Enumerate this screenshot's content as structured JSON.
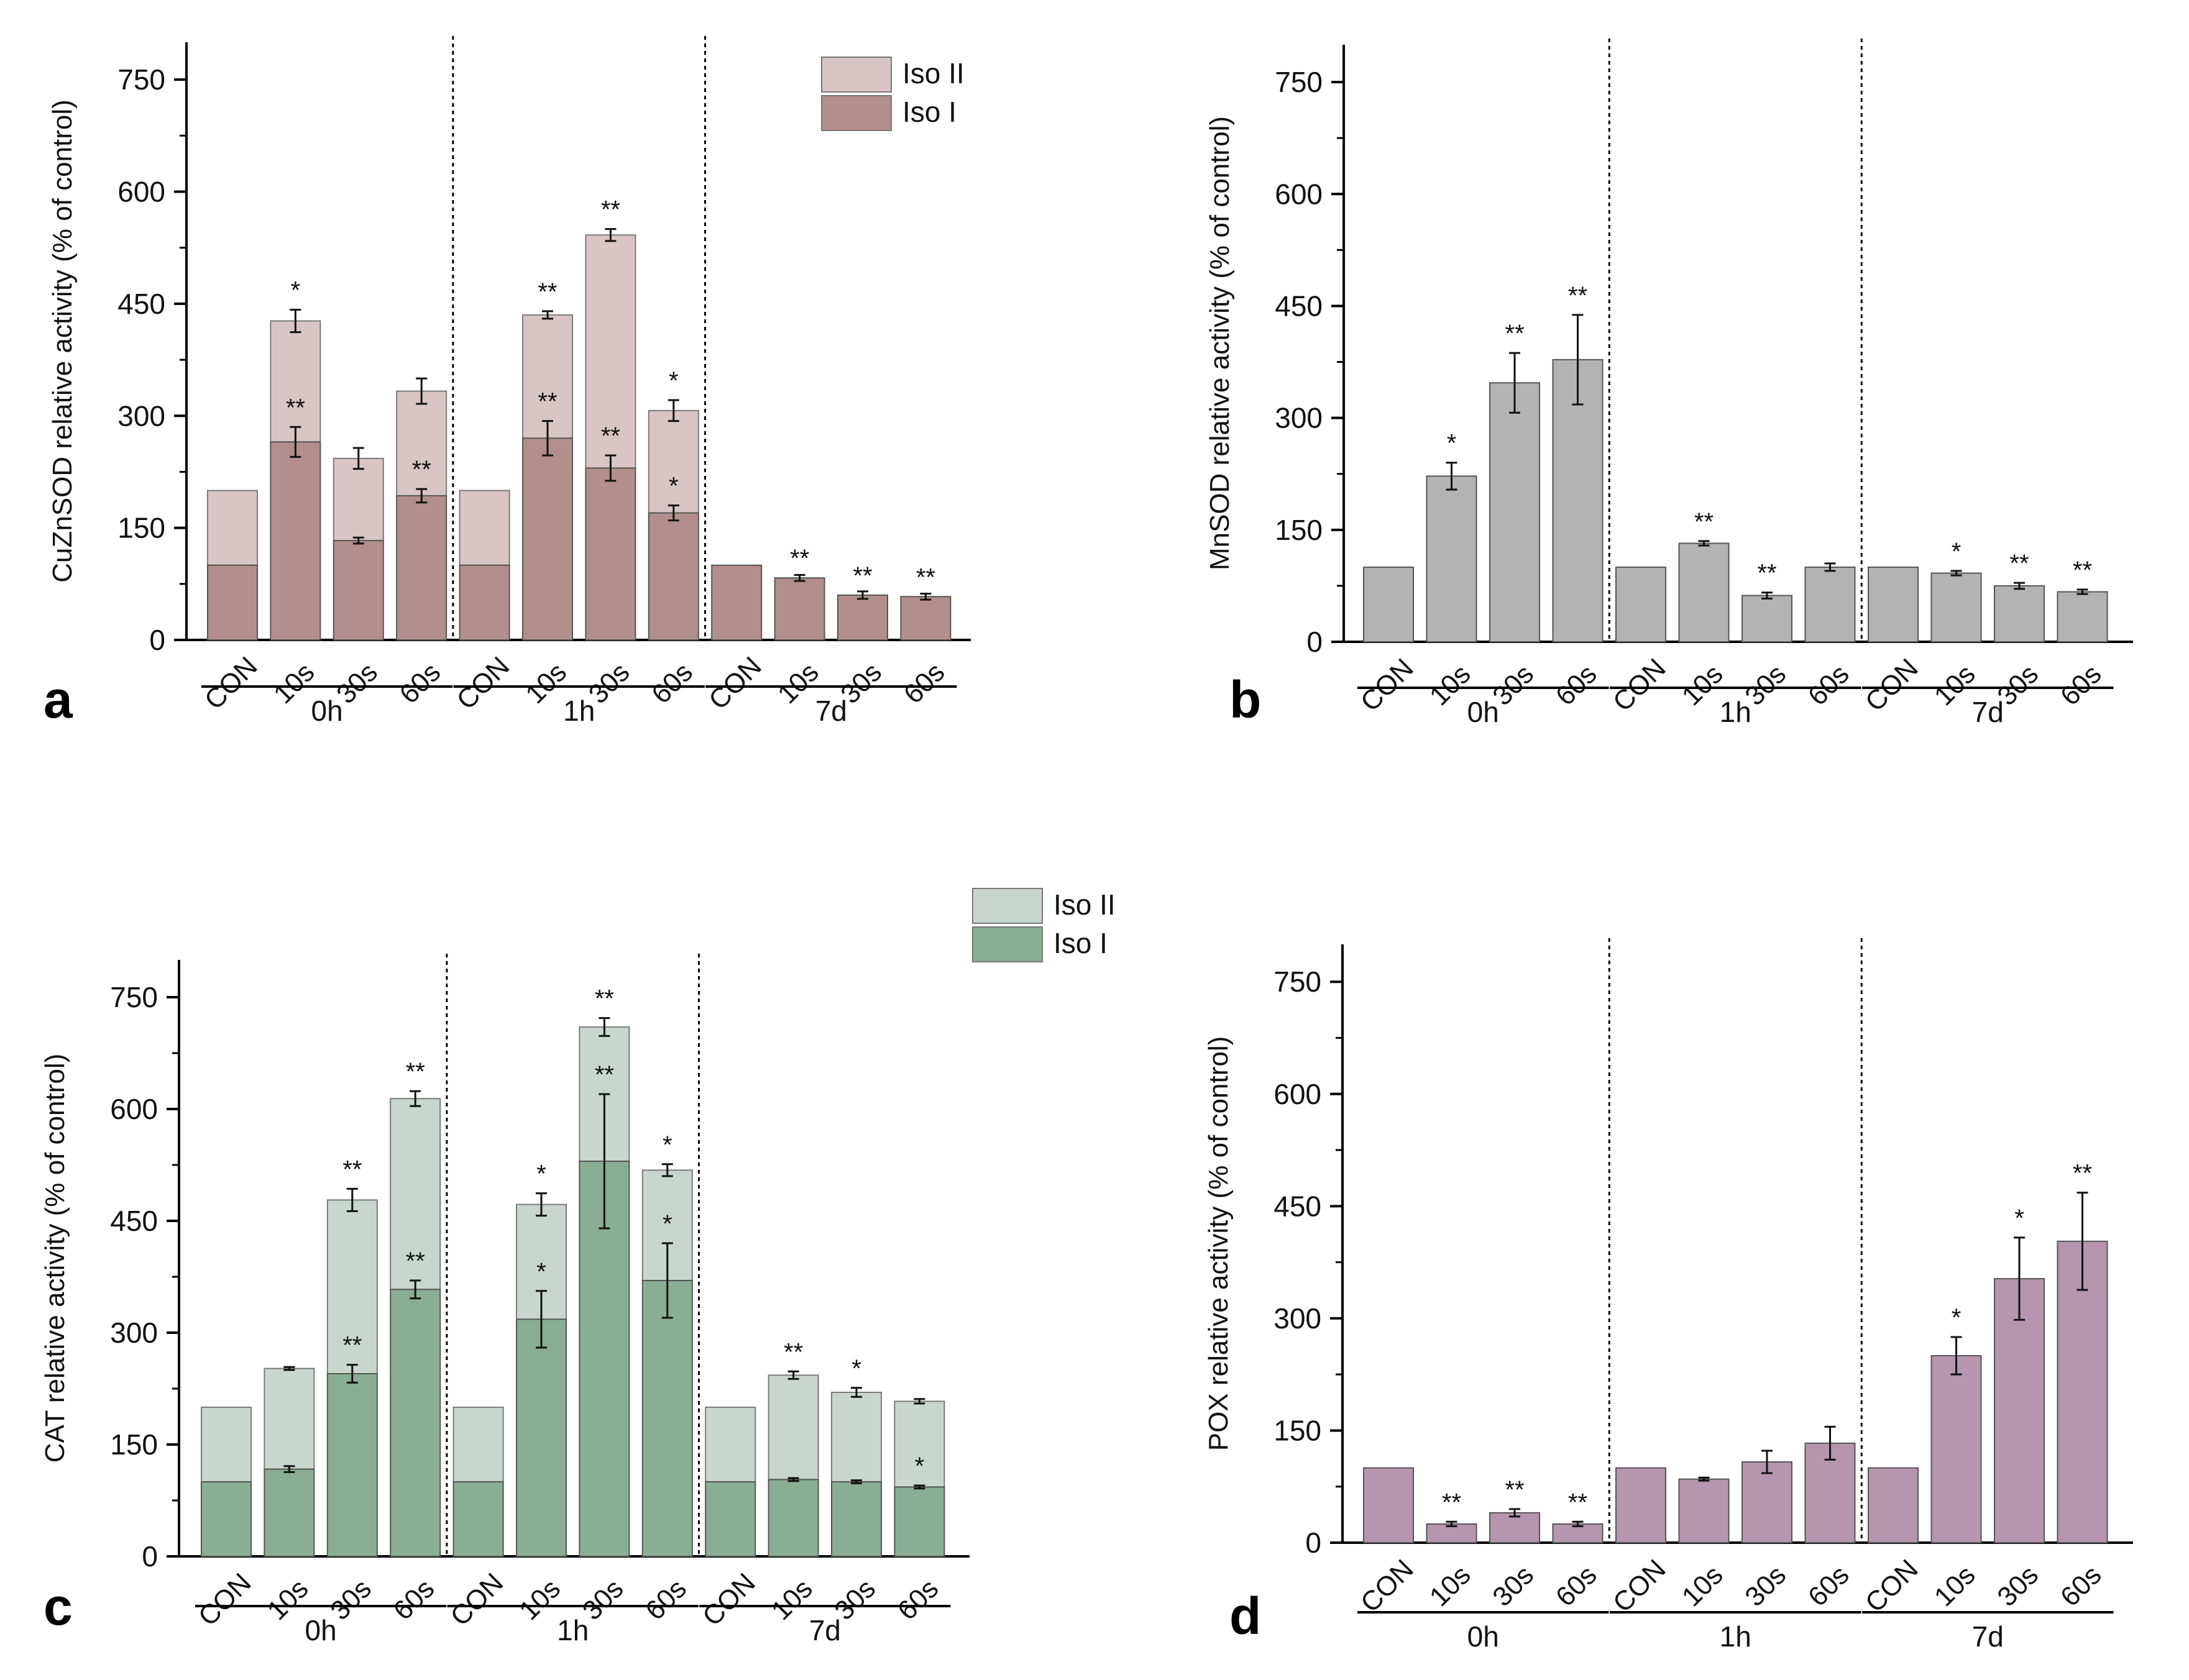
{
  "chart_data": [
    {
      "panel": "a",
      "type": "bar",
      "stacked": true,
      "ylabel": "CuZnSOD relative activity (% of control)",
      "yticks": [
        0,
        150,
        300,
        450,
        600,
        750
      ],
      "ylim": [
        0,
        800
      ],
      "categories": [
        "CON",
        "10s",
        "30s",
        "60s",
        "CON",
        "10s",
        "30s",
        "60s",
        "CON",
        "10s",
        "30s",
        "60s"
      ],
      "groups": [
        "0h",
        "1h",
        "7d"
      ],
      "legend": [
        "Iso II",
        "Iso I"
      ],
      "series": [
        {
          "name": "Iso I",
          "color": "#b28f8c",
          "values": [
            100,
            265,
            133,
            193,
            100,
            270,
            230,
            170,
            100,
            83,
            60,
            58
          ],
          "errors": [
            0,
            20,
            4,
            9,
            0,
            23,
            17,
            10,
            0,
            4,
            5,
            4
          ],
          "stars": [
            "",
            "**",
            "",
            "**",
            "",
            "**",
            "**",
            "*",
            "",
            "",
            "",
            ""
          ]
        },
        {
          "name": "Iso II",
          "color": "#d9c5c5",
          "totals": [
            200,
            427,
            243,
            333,
            200,
            435,
            542,
            307,
            100,
            83,
            60,
            58
          ],
          "errors": [
            0,
            15,
            14,
            17,
            0,
            5,
            8,
            14,
            0,
            0,
            0,
            0
          ],
          "stars": [
            "",
            "*",
            "",
            "",
            "",
            "**",
            "**",
            "*",
            "",
            "**",
            "**",
            "**"
          ]
        }
      ]
    },
    {
      "panel": "b",
      "type": "bar",
      "stacked": false,
      "ylabel": "MnSOD relative activity (% of control)",
      "yticks": [
        0,
        150,
        300,
        450,
        600,
        750
      ],
      "ylim": [
        0,
        800
      ],
      "categories": [
        "CON",
        "10s",
        "30s",
        "60s",
        "CON",
        "10s",
        "30s",
        "60s",
        "CON",
        "10s",
        "30s",
        "60s"
      ],
      "groups": [
        "0h",
        "1h",
        "7d"
      ],
      "series": [
        {
          "name": "MnSOD",
          "color": "#b3b3b3",
          "values": [
            100,
            222,
            347,
            378,
            100,
            132,
            62,
            100,
            100,
            92,
            75,
            67
          ],
          "errors": [
            0,
            18,
            40,
            60,
            0,
            3,
            4,
            5,
            0,
            3,
            4,
            3
          ],
          "stars": [
            "",
            "*",
            "**",
            "**",
            "",
            "**",
            "**",
            "",
            "",
            "*",
            "**",
            "**"
          ]
        }
      ]
    },
    {
      "panel": "c",
      "type": "bar",
      "stacked": true,
      "ylabel": "CAT relative activity (% of control)",
      "yticks": [
        0,
        150,
        300,
        450,
        600,
        750
      ],
      "ylim": [
        0,
        800
      ],
      "categories": [
        "CON",
        "10s",
        "30s",
        "60s",
        "CON",
        "10s",
        "30s",
        "60s",
        "CON",
        "10s",
        "30s",
        "60s"
      ],
      "groups": [
        "0h",
        "1h",
        "7d"
      ],
      "legend": [
        "Iso II",
        "Iso I"
      ],
      "series": [
        {
          "name": "Iso I",
          "color": "#8aae93",
          "values": [
            100,
            117,
            245,
            358,
            100,
            318,
            530,
            370,
            100,
            103,
            100,
            93
          ],
          "errors": [
            0,
            4,
            12,
            12,
            0,
            38,
            90,
            50,
            0,
            2,
            2,
            2
          ],
          "stars": [
            "",
            "",
            "**",
            "**",
            "",
            "*",
            "**",
            "*",
            "",
            "",
            "",
            "*"
          ]
        },
        {
          "name": "Iso II",
          "color": "#c9d6ce",
          "totals": [
            200,
            252,
            478,
            614,
            200,
            472,
            710,
            518,
            200,
            243,
            220,
            208
          ],
          "errors": [
            0,
            2,
            15,
            10,
            0,
            15,
            12,
            8,
            0,
            5,
            6,
            3
          ],
          "stars": [
            "",
            "",
            "**",
            "**",
            "",
            "*",
            "**",
            "*",
            "",
            "**",
            "*",
            ""
          ]
        }
      ]
    },
    {
      "panel": "d",
      "type": "bar",
      "stacked": false,
      "ylabel": "POX relative activity (% of control)",
      "yticks": [
        0,
        150,
        300,
        450,
        600,
        750
      ],
      "ylim": [
        0,
        800
      ],
      "categories": [
        "CON",
        "10s",
        "30s",
        "60s",
        "CON",
        "10s",
        "30s",
        "60s",
        "CON",
        "10s",
        "30s",
        "60s"
      ],
      "groups": [
        "0h",
        "1h",
        "7d"
      ],
      "series": [
        {
          "name": "POX",
          "color": "#b596ae",
          "values": [
            100,
            25,
            40,
            25,
            100,
            85,
            108,
            133,
            100,
            250,
            353,
            403
          ],
          "errors": [
            0,
            3,
            5,
            3,
            0,
            2,
            15,
            22,
            0,
            25,
            55,
            65
          ],
          "stars": [
            "",
            "**",
            "**",
            "**",
            "",
            "",
            "",
            "",
            "",
            "*",
            "*",
            "**"
          ]
        }
      ]
    }
  ]
}
